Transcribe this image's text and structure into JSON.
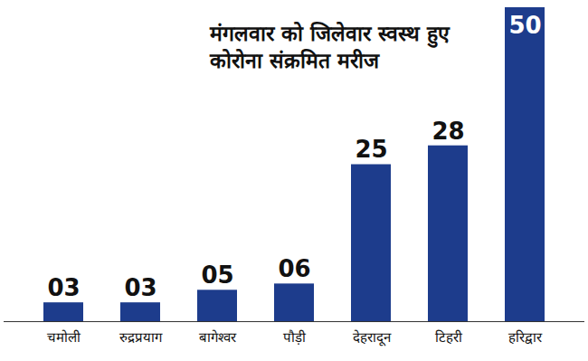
{
  "chart_data": {
    "type": "bar",
    "title": "मंगलवार को जिलेवार स्वस्थ हुए कोरोना संक्रमित मरीज",
    "categories": [
      "चमोली",
      "रुद्रप्रयाग",
      "बागेश्वर",
      "पौड़ी",
      "देहरादून",
      "टिहरी",
      "हरिद्वार"
    ],
    "values": [
      3,
      3,
      5,
      6,
      25,
      28,
      50
    ],
    "value_labels": [
      "03",
      "03",
      "05",
      "06",
      "25",
      "28",
      "50"
    ],
    "color": "#1d3c8c",
    "ylim": [
      0,
      50
    ],
    "data_labels": true,
    "tick_labels": "x"
  }
}
